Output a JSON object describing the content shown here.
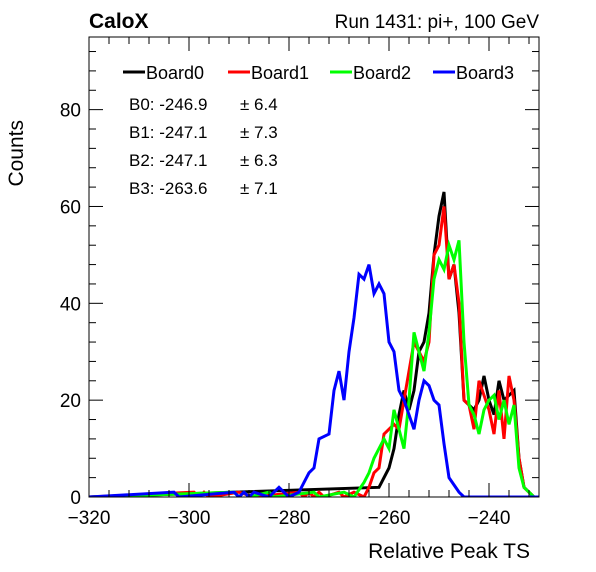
{
  "header": {
    "left_title": "CaloX",
    "right_title": "Run 1431: pi+, 100 GeV"
  },
  "chart_data": {
    "type": "step-histogram",
    "xlabel": "Relative Peak TS",
    "ylabel": "Counts",
    "xlim": [
      -320,
      -230
    ],
    "ylim": [
      0,
      95
    ],
    "bin_width": 1,
    "x_ticks": [
      -320,
      -300,
      -280,
      -260,
      -240
    ],
    "x_tick_labels": [
      "−320",
      "−300",
      "−280",
      "−260",
      "−240"
    ],
    "y_ticks": [
      0,
      20,
      40,
      60,
      80
    ],
    "grid": false,
    "legend_position": "top",
    "stats": [
      {
        "label": "B0: -246.9",
        "err": "± 6.4"
      },
      {
        "label": "B1: -247.1",
        "err": "± 7.3"
      },
      {
        "label": "B2: -247.1",
        "err": "± 6.3"
      },
      {
        "label": "B3: -263.6",
        "err": "± 7.1"
      }
    ],
    "series": [
      {
        "name": "Board0",
        "color": "#000000",
        "bins": [
          [
            -262,
            2
          ],
          [
            -261,
            2
          ],
          [
            -260,
            6
          ],
          [
            -259,
            10
          ],
          [
            -258,
            17
          ],
          [
            -257,
            22
          ],
          [
            -256,
            18
          ],
          [
            -255,
            22
          ],
          [
            -254,
            30
          ],
          [
            -253,
            32
          ],
          [
            -252,
            38
          ],
          [
            -251,
            50
          ],
          [
            -250,
            58
          ],
          [
            -249,
            63
          ],
          [
            -248,
            45
          ],
          [
            -247,
            48
          ],
          [
            -246,
            38
          ],
          [
            -245,
            20
          ],
          [
            -244,
            20
          ],
          [
            -243,
            18
          ],
          [
            -242,
            20
          ],
          [
            -241,
            25
          ],
          [
            -240,
            20
          ],
          [
            -239,
            17
          ],
          [
            -238,
            24
          ],
          [
            -237,
            20
          ],
          [
            -236,
            20
          ],
          [
            -235,
            22
          ],
          [
            -234,
            8
          ],
          [
            -233,
            2
          ],
          [
            -232,
            1
          ]
        ]
      },
      {
        "name": "Board1",
        "color": "#ff0000",
        "bins": [
          [
            -299,
            1
          ],
          [
            -298,
            0
          ],
          [
            -297,
            1
          ],
          [
            -290,
            1
          ],
          [
            -289,
            1
          ],
          [
            -288,
            1
          ],
          [
            -278,
            1
          ],
          [
            -276,
            1
          ],
          [
            -274,
            1
          ],
          [
            -270,
            1
          ],
          [
            -267,
            1
          ],
          [
            -266,
            1
          ],
          [
            -264,
            2
          ],
          [
            -263,
            5
          ],
          [
            -262,
            6
          ],
          [
            -261,
            13
          ],
          [
            -260,
            14
          ],
          [
            -259,
            15
          ],
          [
            -258,
            14
          ],
          [
            -257,
            20
          ],
          [
            -256,
            26
          ],
          [
            -255,
            32
          ],
          [
            -254,
            30
          ],
          [
            -253,
            28
          ],
          [
            -252,
            32
          ],
          [
            -251,
            50
          ],
          [
            -250,
            52
          ],
          [
            -249,
            60
          ],
          [
            -248,
            45
          ],
          [
            -247,
            48
          ],
          [
            -246,
            40
          ],
          [
            -245,
            20
          ],
          [
            -244,
            19
          ],
          [
            -243,
            14
          ],
          [
            -242,
            24
          ],
          [
            -241,
            21
          ],
          [
            -240,
            18
          ],
          [
            -239,
            13
          ],
          [
            -238,
            22
          ],
          [
            -237,
            12
          ],
          [
            -236,
            25
          ],
          [
            -235,
            20
          ],
          [
            -234,
            8
          ],
          [
            -233,
            2
          ],
          [
            -232,
            1
          ]
        ]
      },
      {
        "name": "Board2",
        "color": "#00ff00",
        "bins": [
          [
            -291,
            1
          ],
          [
            -289,
            1
          ],
          [
            -284,
            1
          ],
          [
            -275,
            1
          ],
          [
            -269,
            1
          ],
          [
            -268,
            1
          ],
          [
            -265,
            3
          ],
          [
            -264,
            5
          ],
          [
            -263,
            8
          ],
          [
            -262,
            10
          ],
          [
            -261,
            12
          ],
          [
            -260,
            10
          ],
          [
            -259,
            18
          ],
          [
            -258,
            18
          ],
          [
            -257,
            10
          ],
          [
            -256,
            20
          ],
          [
            -255,
            34
          ],
          [
            -254,
            30
          ],
          [
            -253,
            26
          ],
          [
            -252,
            34
          ],
          [
            -251,
            45
          ],
          [
            -250,
            49
          ],
          [
            -249,
            47
          ],
          [
            -248,
            52
          ],
          [
            -247,
            49
          ],
          [
            -246,
            53
          ],
          [
            -245,
            32
          ],
          [
            -244,
            19
          ],
          [
            -243,
            17
          ],
          [
            -242,
            13
          ],
          [
            -241,
            18
          ],
          [
            -240,
            20
          ],
          [
            -239,
            21
          ],
          [
            -238,
            16
          ],
          [
            -237,
            20
          ],
          [
            -236,
            15
          ],
          [
            -235,
            19
          ],
          [
            -234,
            6
          ],
          [
            -233,
            2
          ],
          [
            -232,
            1
          ]
        ]
      },
      {
        "name": "Board3",
        "color": "#0000ff",
        "bins": [
          [
            -303,
            1
          ],
          [
            -291,
            1
          ],
          [
            -289,
            1
          ],
          [
            -287,
            1
          ],
          [
            -286,
            1
          ],
          [
            -285,
            1
          ],
          [
            -282,
            2
          ],
          [
            -281,
            1
          ],
          [
            -278,
            1
          ],
          [
            -277,
            3
          ],
          [
            -276,
            5
          ],
          [
            -275,
            6
          ],
          [
            -274,
            12
          ],
          [
            -273,
            12
          ],
          [
            -272,
            13
          ],
          [
            -271,
            22
          ],
          [
            -270,
            26
          ],
          [
            -269,
            20
          ],
          [
            -268,
            30
          ],
          [
            -267,
            37
          ],
          [
            -266,
            46
          ],
          [
            -265,
            45
          ],
          [
            -264,
            48
          ],
          [
            -263,
            42
          ],
          [
            -262,
            44
          ],
          [
            -261,
            42
          ],
          [
            -260,
            32
          ],
          [
            -259,
            30
          ],
          [
            -258,
            22
          ],
          [
            -257,
            20
          ],
          [
            -256,
            17
          ],
          [
            -255,
            14
          ],
          [
            -254,
            20
          ],
          [
            -253,
            24
          ],
          [
            -252,
            23
          ],
          [
            -251,
            20
          ],
          [
            -250,
            19
          ],
          [
            -249,
            11
          ],
          [
            -248,
            4
          ],
          [
            -247,
            4
          ],
          [
            -246,
            1
          ]
        ]
      }
    ]
  }
}
